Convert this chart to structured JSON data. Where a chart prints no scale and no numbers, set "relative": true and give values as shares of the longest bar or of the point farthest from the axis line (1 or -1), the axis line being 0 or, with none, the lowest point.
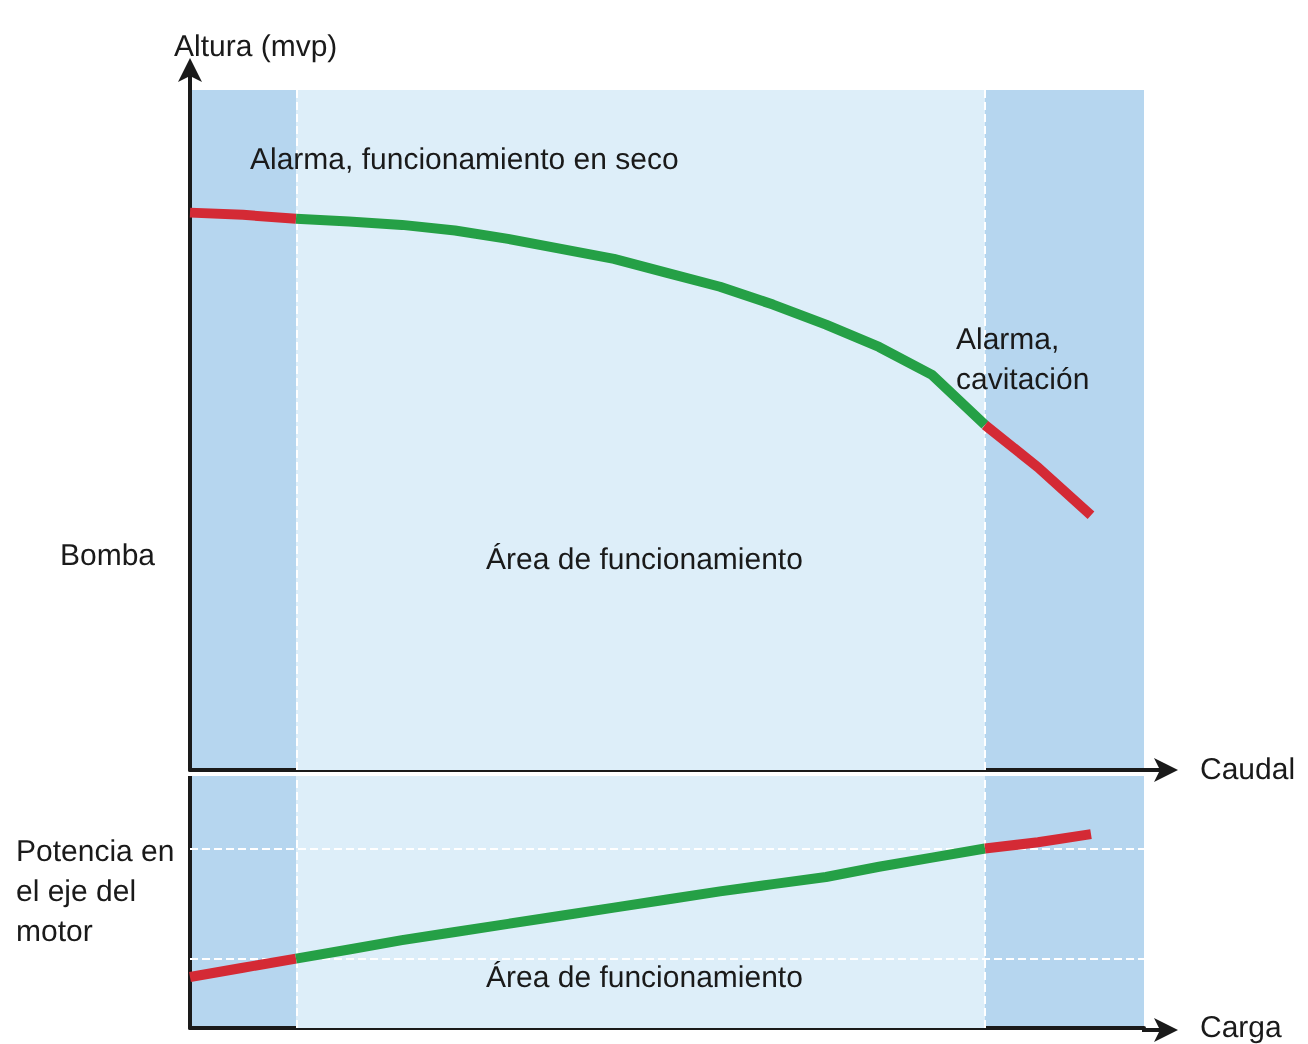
{
  "chart_data": [
    {
      "type": "line",
      "relative": true,
      "ylabel": "Altura (mvp)",
      "xlabel": "Caudal",
      "marker": "none",
      "line_style": "solid",
      "categories": [
        null,
        null,
        null,
        null,
        null,
        null,
        null,
        null,
        null,
        null,
        null,
        null,
        null,
        null,
        null,
        null,
        null,
        null,
        null
      ],
      "annotations": [
        "Bomba",
        "Alarma, funcionamiento en seco",
        "Alarma, cavitación",
        "Área de funcionamiento"
      ],
      "series": [
        {
          "color": "#d42a35",
          "values": [
            1.0,
            0.996,
            0.989,
            null,
            null,
            null,
            null,
            null,
            null,
            null,
            null,
            null,
            null,
            null,
            null,
            null,
            null,
            null,
            null
          ]
        },
        {
          "color": "#25a046",
          "values": [
            null,
            null,
            0.989,
            0.984,
            0.978,
            0.968,
            0.953,
            0.935,
            0.917,
            0.892,
            0.867,
            0.835,
            0.799,
            0.759,
            0.709,
            0.619,
            null,
            null,
            null
          ]
        },
        {
          "color": "#d42a35",
          "values": [
            null,
            null,
            null,
            null,
            null,
            null,
            null,
            null,
            null,
            null,
            null,
            null,
            null,
            null,
            null,
            0.619,
            0.543,
            0.457,
            null
          ]
        }
      ]
    },
    {
      "type": "line",
      "relative": true,
      "ylabel": "Potencia en el eje del motor",
      "xlabel": "Carga",
      "marker": "none",
      "line_style": "solid",
      "categories": [
        null,
        null,
        null,
        null,
        null,
        null,
        null,
        null,
        null,
        null,
        null,
        null,
        null,
        null,
        null,
        null,
        null,
        null,
        null
      ],
      "annotations": [
        "Área de funcionamiento"
      ],
      "series": [
        {
          "color": "#d42a35",
          "values": [
            0.263,
            0.311,
            0.358,
            null,
            null,
            null,
            null,
            null,
            null,
            null,
            null,
            null,
            null,
            null,
            null,
            null,
            null,
            null,
            null
          ]
        },
        {
          "color": "#25a046",
          "values": [
            null,
            null,
            0.358,
            0.405,
            0.453,
            0.495,
            0.537,
            0.579,
            0.621,
            0.663,
            0.705,
            0.742,
            0.779,
            0.832,
            0.879,
            0.926,
            null,
            null,
            null
          ]
        },
        {
          "color": "#d42a35",
          "values": [
            null,
            null,
            null,
            null,
            null,
            null,
            null,
            null,
            null,
            null,
            null,
            null,
            null,
            null,
            null,
            0.926,
            0.958,
            1.0,
            null
          ]
        }
      ]
    }
  ]
}
